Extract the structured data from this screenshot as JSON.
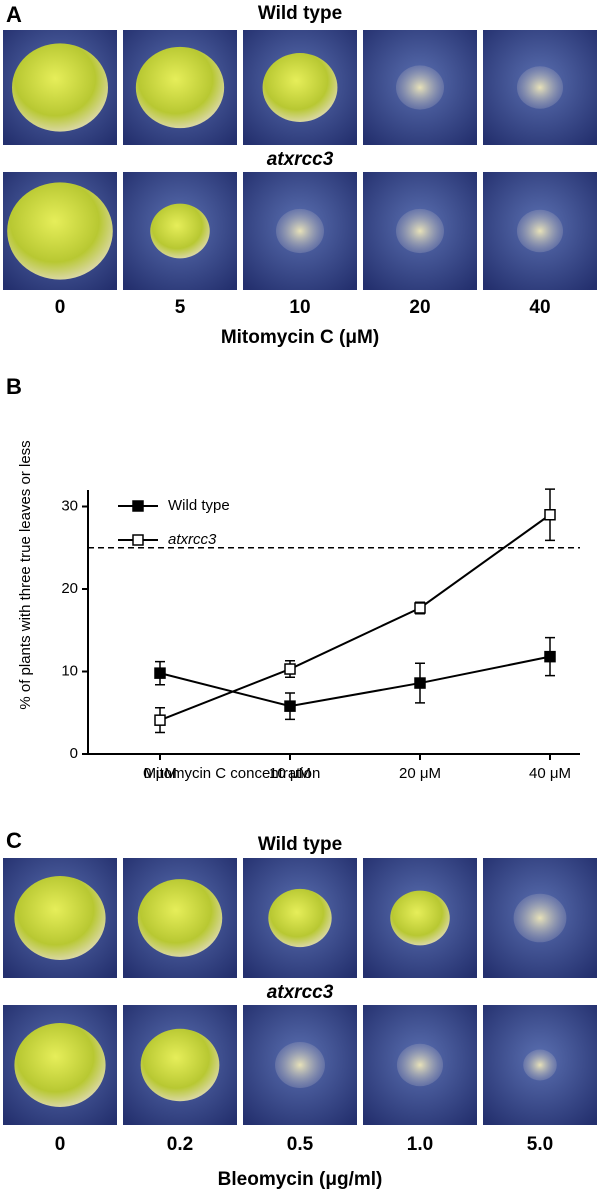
{
  "panel_a": {
    "label": "A",
    "row_titles": [
      "Wild type",
      "atxrcc3"
    ],
    "doses": [
      "0",
      "5",
      "10",
      "20",
      "40"
    ],
    "axis_label": "Mitomycin C (μM)"
  },
  "chart_data": {
    "type": "line",
    "panel_label": "B",
    "categories": [
      "0 μM",
      "10 μM",
      "20 μM",
      "40 μM"
    ],
    "x_label": "Mitomycin C concentration",
    "y_label": "% of plants with three true leaves or less",
    "series": [
      {
        "name": "Wild type",
        "color": "#000000",
        "marker": "filled",
        "values": [
          9.8,
          5.8,
          8.6,
          11.8
        ],
        "errors": [
          1.4,
          1.6,
          2.4,
          2.3
        ]
      },
      {
        "name": "atxrcc3",
        "color": "#000000",
        "marker": "open",
        "values": [
          4.1,
          10.3,
          17.7,
          29
        ],
        "errors": [
          1.5,
          1.0,
          0.7,
          3.1
        ]
      }
    ],
    "reference_line": 25,
    "ylim": [
      0,
      32
    ],
    "yticks": [
      0,
      10,
      20,
      30
    ],
    "legend": "upper-left",
    "grid": false
  },
  "panel_c": {
    "label": "C",
    "row_titles": [
      "Wild type",
      "atxrcc3"
    ],
    "doses": [
      "0",
      "0.2",
      "0.5",
      "1.0",
      "5.0"
    ],
    "axis_label": "Bleomycin (μg/ml)"
  }
}
